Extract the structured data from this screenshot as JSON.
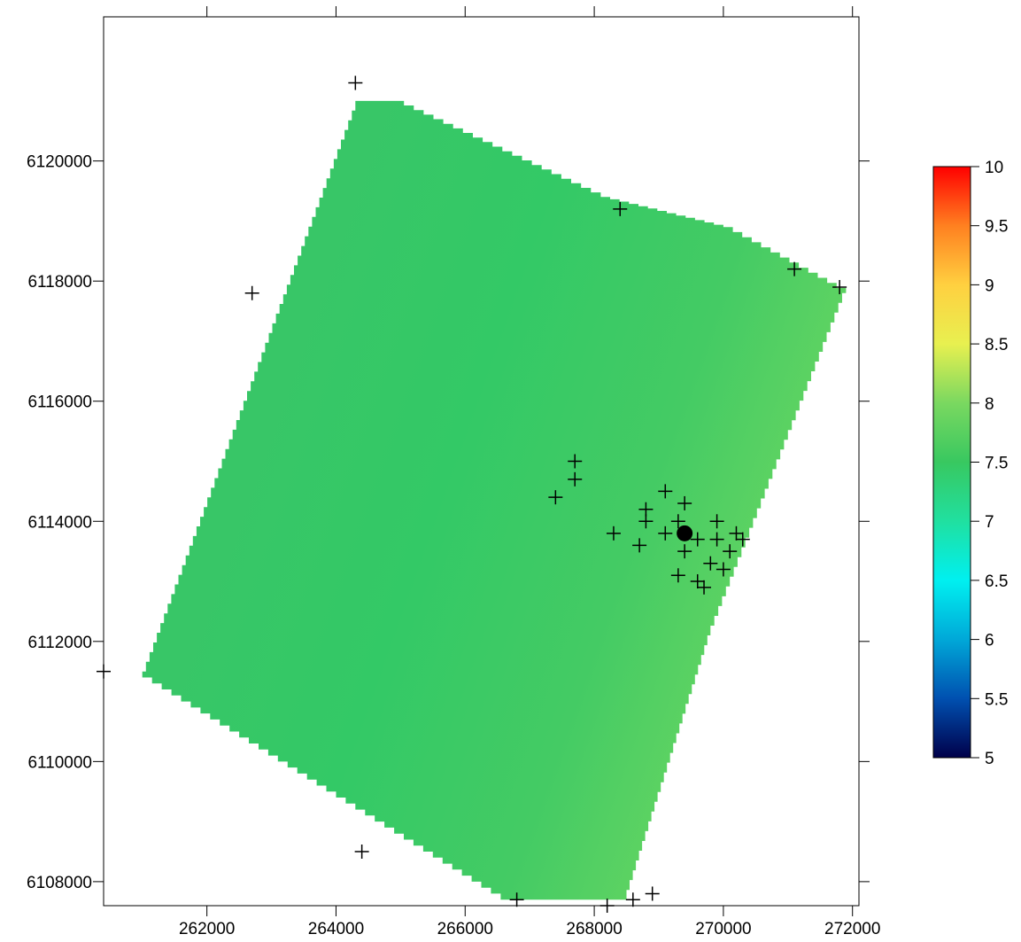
{
  "chart_data": {
    "type": "heatmap",
    "title": "",
    "xlabel": "",
    "ylabel": "",
    "xlim": [
      260400,
      272100
    ],
    "ylim": [
      6107600,
      6122400
    ],
    "x_ticks": [
      262000,
      264000,
      266000,
      268000,
      270000,
      272000
    ],
    "x_tick_labels": [
      "262000",
      "264000",
      "266000",
      "268000",
      "270000",
      "272000"
    ],
    "y_ticks": [
      6108000,
      6110000,
      6112000,
      6114000,
      6116000,
      6118000,
      6120000
    ],
    "y_tick_labels": [
      "6108000",
      "6110000",
      "6112000",
      "6114000",
      "6116000",
      "6118000",
      "6120000"
    ],
    "grid": false,
    "colorbar": {
      "min": 5,
      "max": 10,
      "ticks": [
        5,
        5.5,
        6,
        6.5,
        7,
        7.5,
        8,
        8.5,
        9,
        9.5,
        10
      ],
      "tick_labels": [
        "5",
        "5.5",
        "6",
        "6.5",
        "7",
        "7.5",
        "8",
        "8.5",
        "9",
        "9.5",
        "10"
      ],
      "colors": [
        "#00004a",
        "#0050b0",
        "#00a8d8",
        "#00f0f0",
        "#20e0a0",
        "#38c860",
        "#7ad860",
        "#e8f050",
        "#ffd040",
        "#ff8020",
        "#ff0000"
      ]
    },
    "surface": {
      "value_range": [
        7.4,
        7.8
      ],
      "boundary_vertices": [
        [
          264300,
          6121000
        ],
        [
          264900,
          6121000
        ],
        [
          268100,
          6119400
        ],
        [
          270000,
          6118900
        ],
        [
          271900,
          6117800
        ],
        [
          269800,
          6112100
        ],
        [
          268500,
          6107700
        ],
        [
          266700,
          6107700
        ],
        [
          261000,
          6111500
        ],
        [
          264300,
          6121000
        ]
      ]
    },
    "stations": [
      [
        264300,
        6121300
      ],
      [
        262700,
        6117800
      ],
      [
        268400,
        6119200
      ],
      [
        271100,
        6118200
      ],
      [
        271800,
        6117900
      ],
      [
        267700,
        6115000
      ],
      [
        267700,
        6114700
      ],
      [
        267400,
        6114400
      ],
      [
        268300,
        6113800
      ],
      [
        268800,
        6114200
      ],
      [
        268800,
        6114000
      ],
      [
        268700,
        6113600
      ],
      [
        269100,
        6114500
      ],
      [
        269100,
        6113800
      ],
      [
        269400,
        6114300
      ],
      [
        269300,
        6114000
      ],
      [
        269400,
        6113500
      ],
      [
        269300,
        6113100
      ],
      [
        269600,
        6113700
      ],
      [
        269600,
        6113000
      ],
      [
        269700,
        6112900
      ],
      [
        269800,
        6113300
      ],
      [
        269900,
        6114000
      ],
      [
        269900,
        6113700
      ],
      [
        270000,
        6113200
      ],
      [
        270100,
        6113500
      ],
      [
        270200,
        6113800
      ],
      [
        270300,
        6113700
      ],
      [
        260400,
        6111500
      ],
      [
        264400,
        6108500
      ],
      [
        266800,
        6107700
      ],
      [
        268200,
        6107600
      ],
      [
        268600,
        6107700
      ],
      [
        268900,
        6107800
      ]
    ],
    "highlight_point": [
      269400,
      6113800
    ]
  }
}
